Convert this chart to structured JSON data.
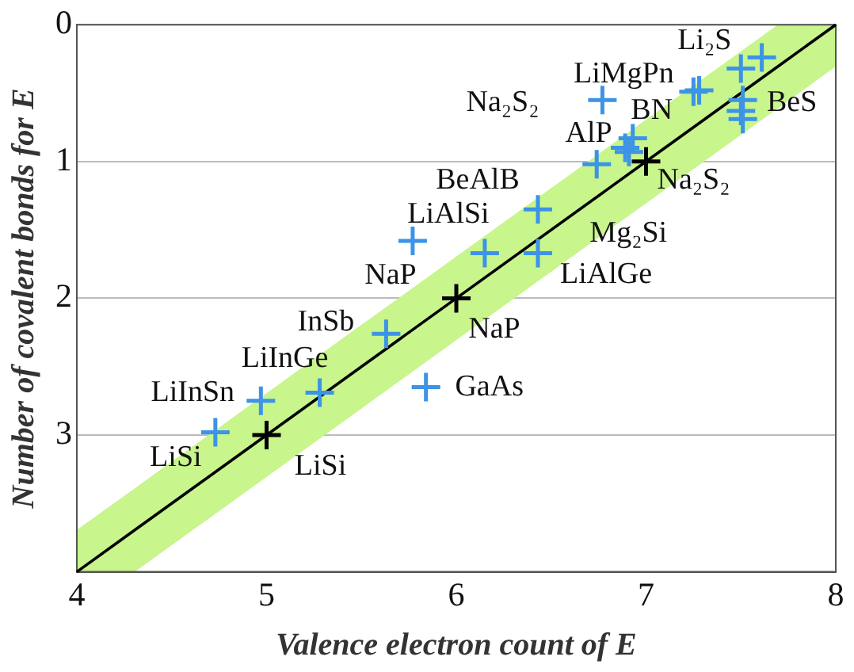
{
  "chart_data": {
    "type": "scatter",
    "xlabel": "Valence electron count of E",
    "ylabel": "Number of covalent bonds for E",
    "xlim": [
      4,
      8
    ],
    "xticks": [
      4,
      5,
      6,
      7,
      8
    ],
    "ylim": [
      4,
      0
    ],
    "yticks": [
      0,
      1,
      2,
      3
    ],
    "grid": "y",
    "series": [
      {
        "type": "line",
        "color": "#000000",
        "colors": [
          "#c8f58c",
          "#c8f58c",
          "#c8f58c",
          "#c8f58c",
          "#c8f58c",
          "#c8f58c",
          "#c8f58c"
        ],
        "marker": "none",
        "x": [
          4,
          4.3,
          5,
          6,
          7,
          7.7,
          8
        ],
        "values": [
          4,
          3.7,
          3,
          2,
          1,
          0.3,
          0
        ],
        "lower": [
          3.7,
          3.4,
          2.7,
          1.7,
          0.7,
          0,
          0
        ],
        "upper": [
          4,
          4,
          3.3,
          2.3,
          1.3,
          0.6,
          0.3
        ]
      },
      {
        "color": "#3d93e6",
        "marker": "cross",
        "x": [
          7.61,
          7.5,
          7.25,
          7.28,
          7.51,
          7.5,
          7.51,
          6.77,
          6.93,
          6.89,
          6.91,
          6.74,
          6.43,
          5.77,
          6.15,
          6.43,
          5.63,
          5.28,
          4.97,
          4.73,
          5.84
        ],
        "values": [
          0.24,
          0.32,
          0.49,
          0.48,
          0.55,
          0.63,
          0.69,
          0.55,
          0.83,
          0.9,
          0.93,
          1.02,
          1.35,
          1.58,
          1.67,
          1.67,
          2.26,
          2.69,
          2.75,
          2.98,
          2.65
        ]
      },
      {
        "color": "#000000",
        "marker": "cross",
        "x": [
          5,
          6,
          7
        ],
        "values": [
          3,
          2,
          1
        ]
      }
    ],
    "annotations": [
      {
        "text": "Li₂S",
        "x": 7.5,
        "y": 0.32
      },
      {
        "text": "LiMgPn",
        "x": 7.25,
        "y": 0.49
      },
      {
        "text": "Na₂S₂",
        "x": 6.77,
        "y": 0.55
      },
      {
        "text": "BN",
        "x": 6.93,
        "y": 0.83
      },
      {
        "text": "AlP",
        "x": 6.89,
        "y": 0.9
      },
      {
        "text": "BeS",
        "x": 7.51,
        "y": 0.55
      },
      {
        "text": "Na₂S₂",
        "x": 7,
        "y": 1
      },
      {
        "text": "BeAlB",
        "x": 6.43,
        "y": 1.35
      },
      {
        "text": "LiAlSi",
        "x": 6.15,
        "y": 1.67
      },
      {
        "text": "Mg₂Si",
        "x": 6.74,
        "y": 1.02
      },
      {
        "text": "NaP",
        "x": 5.77,
        "y": 1.58
      },
      {
        "text": "LiAlGe",
        "x": 6.43,
        "y": 1.67
      },
      {
        "text": "InSb",
        "x": 5.63,
        "y": 2.26
      },
      {
        "text": "NaP",
        "x": 6,
        "y": 2
      },
      {
        "text": "LiInGe",
        "x": 5.28,
        "y": 2.69
      },
      {
        "text": "LiInSn",
        "x": 4.97,
        "y": 2.75
      },
      {
        "text": "GaAs",
        "x": 5.84,
        "y": 2.65
      },
      {
        "text": "LiSi",
        "x": 4.73,
        "y": 2.98
      },
      {
        "text": "LiSi",
        "x": 5,
        "y": 3
      }
    ]
  }
}
